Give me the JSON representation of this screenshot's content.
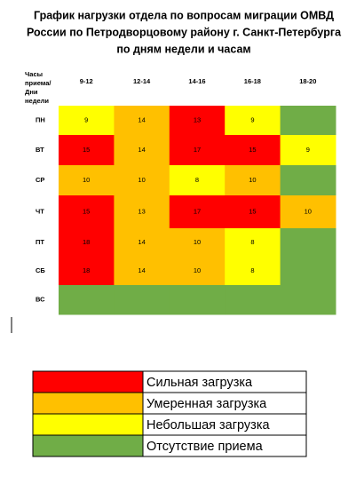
{
  "title": [
    "График нагрузки отдела по вопросам миграции ОМВД",
    "России по Петродворцовому району г. Санкт-Петербурга",
    "по дням недели и часам"
  ],
  "corner": [
    "Часы",
    "приема/",
    "Дни",
    "недели"
  ],
  "columns": [
    "9-12",
    "12-14",
    "14-16",
    "16-18",
    "18-20"
  ],
  "rows": [
    {
      "day": "ПН",
      "cells": [
        {
          "value": 9,
          "level": 2
        },
        {
          "value": 14,
          "level": 1
        },
        {
          "value": 13,
          "level": 0
        },
        {
          "value": 9,
          "level": 2
        },
        {
          "level": 3
        }
      ]
    },
    {
      "day": "ВТ",
      "cells": [
        {
          "value": 15,
          "level": 0
        },
        {
          "value": 14,
          "level": 1
        },
        {
          "value": 17,
          "level": 0
        },
        {
          "value": 15,
          "level": 0
        },
        {
          "value": 9,
          "level": 2
        }
      ]
    },
    {
      "day": "СР",
      "cells": [
        {
          "value": 10,
          "level": 1
        },
        {
          "value": 10,
          "level": 1
        },
        {
          "value": 8,
          "level": 2
        },
        {
          "value": 10,
          "level": 1
        },
        {
          "level": 3
        }
      ]
    },
    {
      "day": "ЧТ",
      "cells": [
        {
          "value": 15,
          "level": 0
        },
        {
          "value": 13,
          "level": 1
        },
        {
          "value": 17,
          "level": 0
        },
        {
          "value": 15,
          "level": 0
        },
        {
          "value": 10,
          "level": 1
        }
      ]
    },
    {
      "day": "ПТ",
      "cells": [
        {
          "value": 18,
          "level": 0
        },
        {
          "value": 14,
          "level": 1
        },
        {
          "value": 10,
          "level": 1
        },
        {
          "value": 8,
          "level": 2
        },
        {
          "level": 3
        }
      ]
    },
    {
      "day": "СБ",
      "cells": [
        {
          "value": 18,
          "level": 0
        },
        {
          "value": 14,
          "level": 1
        },
        {
          "value": 10,
          "level": 1
        },
        {
          "value": 8,
          "level": 2
        },
        {
          "level": 3
        }
      ]
    },
    {
      "day": "ВС",
      "cells": [
        {
          "level": 3
        },
        {
          "level": 3
        },
        {
          "level": 3
        },
        {
          "level": 3
        },
        {
          "level": 3
        }
      ]
    }
  ],
  "legend": [
    {
      "label": "Сильная загрузка",
      "color": "#ff0000"
    },
    {
      "label": "Умеренная загрузка",
      "color": "#ffc000"
    },
    {
      "label": "Небольшая загрузка",
      "color": "#ffff00"
    },
    {
      "label": "Отсутствие приема",
      "color": "#70ad47"
    }
  ]
}
